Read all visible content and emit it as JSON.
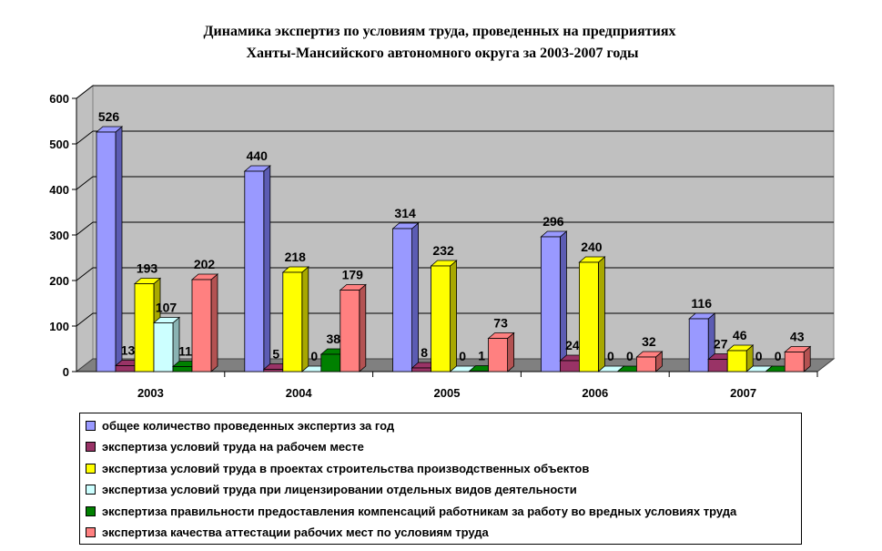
{
  "chart_data": {
    "type": "bar",
    "title": [
      "Динамика экспертиз по условиям труда, проведенных на предприятиях",
      "Ханты-Мансийского автономного округа за 2003-2007 годы"
    ],
    "categories": [
      "2003",
      "2004",
      "2005",
      "2006",
      "2007"
    ],
    "ylim": [
      0,
      600
    ],
    "yticks": [
      "0",
      "100",
      "200",
      "300",
      "400",
      "500",
      "600"
    ],
    "grid": true,
    "legend_position": "bottom",
    "three_d": true,
    "series": [
      {
        "name": "общее количество проведенных экспертиз за год",
        "color": "#9999ff",
        "side": "#5c5cb3",
        "values": [
          526,
          440,
          314,
          296,
          116
        ],
        "labels": [
          "526",
          "440",
          "314",
          "296",
          "116"
        ]
      },
      {
        "name": "экспертиза условий труда на рабочем месте",
        "color": "#993366",
        "side": "#5e1f3f",
        "values": [
          13,
          5,
          8,
          24,
          27
        ],
        "labels": [
          "13",
          "5",
          "8",
          "24",
          "27"
        ]
      },
      {
        "name": "экспертиза условий труда в проектах строительства производственных объектов",
        "color": "#ffff00",
        "side": "#a8a800",
        "values": [
          193,
          218,
          232,
          240,
          46
        ],
        "labels": [
          "193",
          "218",
          "232",
          "240",
          "46"
        ]
      },
      {
        "name": "экспертиза условий труда при лицензировании отдельных видов деятельности",
        "color": "#ccffff",
        "side": "#8ab3b3",
        "values": [
          107,
          0,
          0,
          0,
          0
        ],
        "labels": [
          "107",
          "0",
          "0",
          "0",
          "0"
        ]
      },
      {
        "name": "экспертиза правильности предоставления компенсаций работникам за работу во вредных условиях труда",
        "color": "#008000",
        "side": "#004d00",
        "values": [
          11,
          38,
          1,
          0,
          0
        ],
        "labels": [
          "11",
          "38",
          "1",
          "0",
          "0"
        ]
      },
      {
        "name": "экспертиза качества аттестации рабочих мест по условиям труда",
        "color": "#ff8080",
        "side": "#b35252",
        "values": [
          202,
          179,
          73,
          32,
          43
        ],
        "labels": [
          "202",
          "179",
          "73",
          "32",
          "43"
        ]
      }
    ]
  }
}
